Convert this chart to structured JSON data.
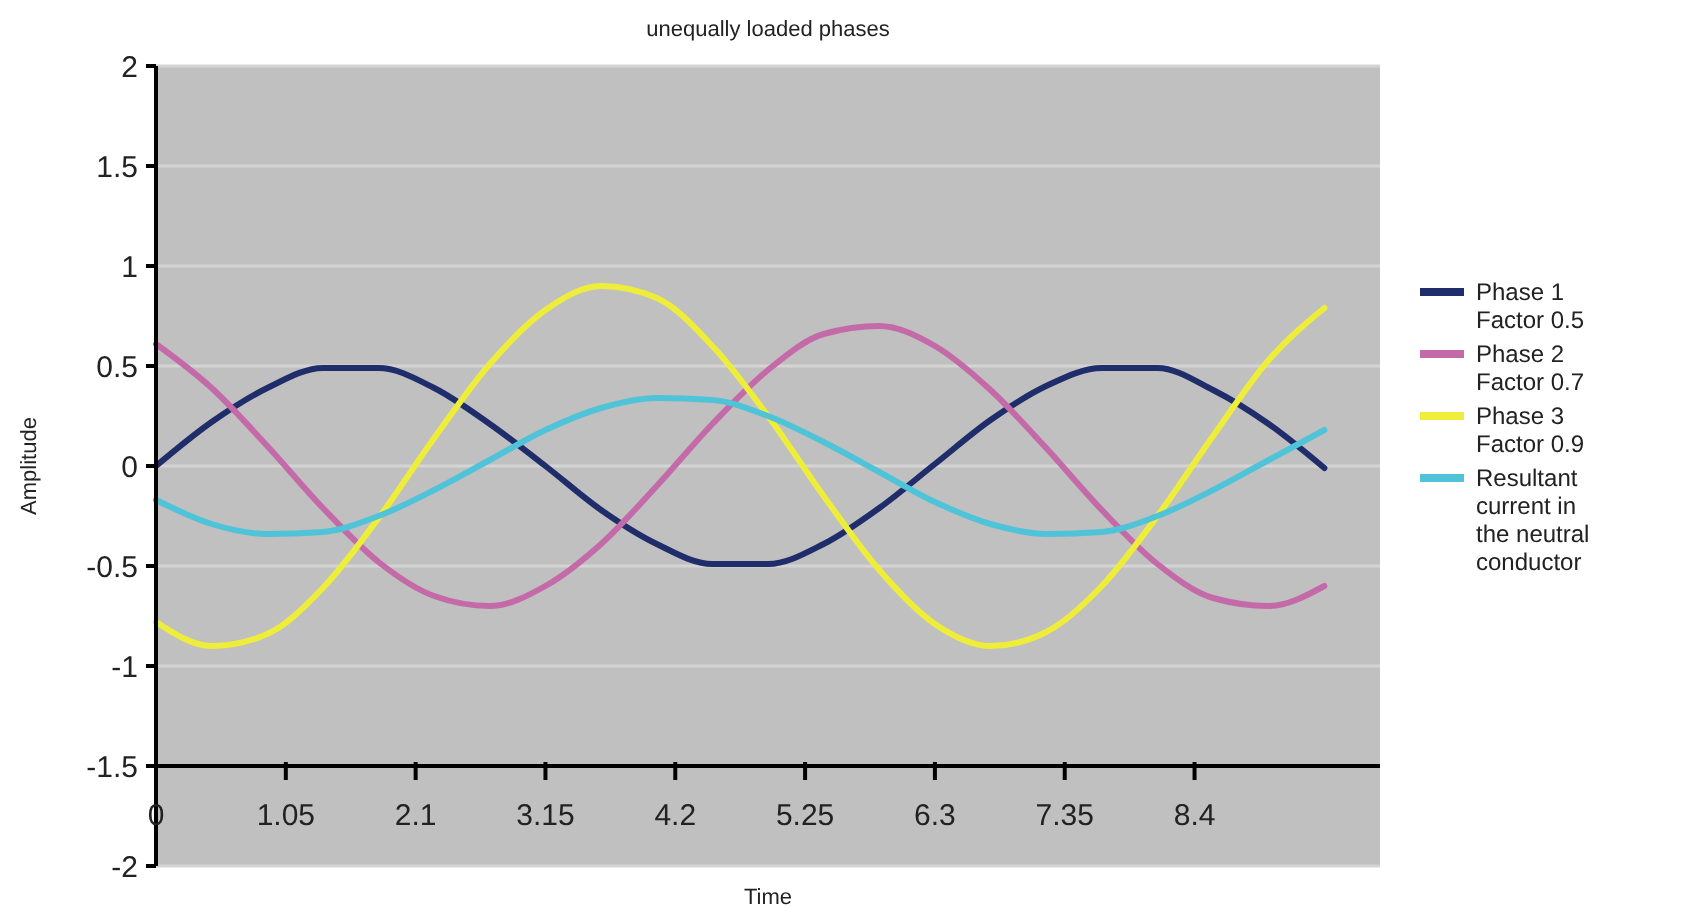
{
  "chart_data": {
    "type": "line",
    "title": "unequally loaded phases",
    "xlabel": "Time",
    "ylabel": "Amplitude",
    "x": [
      0,
      0.45,
      0.9,
      1.35,
      1.8,
      2.25,
      2.7,
      3.15,
      3.6,
      4.05,
      4.5,
      4.95,
      5.4,
      5.85,
      6.3,
      6.75,
      7.2,
      7.65,
      8.1,
      8.55,
      9.0,
      9.45
    ],
    "series": [
      {
        "name": "Phase 1 Factor 0.5",
        "color": "#1f2d6b",
        "values": [
          0,
          0.22,
          0.39,
          0.49,
          0.49,
          0.39,
          0.21,
          0,
          -0.22,
          -0.39,
          -0.49,
          -0.49,
          -0.39,
          -0.21,
          0.01,
          0.23,
          0.4,
          0.49,
          0.49,
          0.38,
          0.21,
          -0.01
        ]
      },
      {
        "name": "Phase 2 Factor 0.7",
        "color": "#c46aa8",
        "values": [
          0.61,
          0.39,
          0.1,
          -0.21,
          -0.48,
          -0.65,
          -0.7,
          -0.6,
          -0.39,
          -0.1,
          0.21,
          0.48,
          0.66,
          0.7,
          0.6,
          0.38,
          0.09,
          -0.22,
          -0.49,
          -0.66,
          -0.7,
          -0.6
        ]
      },
      {
        "name": "Phase 3 Factor 0.9",
        "color": "#eeee3a",
        "values": [
          -0.78,
          -0.9,
          -0.84,
          -0.61,
          -0.26,
          0.14,
          0.51,
          0.78,
          0.9,
          0.84,
          0.6,
          0.25,
          -0.15,
          -0.52,
          -0.79,
          -0.9,
          -0.83,
          -0.6,
          -0.25,
          0.15,
          0.53,
          0.79
        ]
      },
      {
        "name": "Resultant current in the neutral conductor",
        "color": "#4fc3d8",
        "values": [
          -0.17,
          -0.29,
          -0.34,
          -0.33,
          -0.25,
          -0.12,
          0.03,
          0.18,
          0.29,
          0.34,
          0.33,
          0.25,
          0.12,
          -0.03,
          -0.18,
          -0.29,
          -0.34,
          -0.33,
          -0.25,
          -0.12,
          0.03,
          0.18
        ]
      }
    ],
    "xlim": [
      0,
      9.9
    ],
    "xticks": [
      0,
      1.05,
      2.1,
      3.15,
      4.2,
      5.25,
      6.3,
      7.35,
      8.4
    ],
    "ylim": [
      -2,
      2
    ],
    "yticks": [
      -2,
      -1.5,
      -1,
      -0.5,
      0,
      0.5,
      1,
      1.5,
      2
    ],
    "grid": "y",
    "legend": "right",
    "marker": "none",
    "line_style": "solid"
  }
}
